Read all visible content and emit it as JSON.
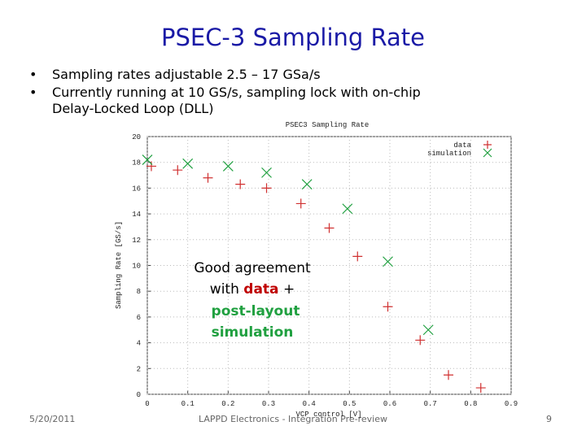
{
  "slide": {
    "title": "PSEC-3 Sampling Rate",
    "bullets": [
      "Sampling rates adjustable 2.5 – 17 GSa/s",
      "Currently running at 10 GS/s, sampling lock with on-chip",
      "Delay-Locked Loop (DLL)"
    ],
    "annotation": {
      "line1": "Good agreement",
      "line2": "with",
      "highlight": "data",
      "plus": "+",
      "line3": "post-layout",
      "line4": "simulation"
    },
    "footer": {
      "date": "5/20/2011",
      "center": "LAPPD Electronics - Integration Pre-review",
      "page": "9"
    }
  },
  "chart_data": {
    "type": "scatter",
    "title": "PSEC3 Sampling Rate",
    "x_label": "VCP control [V]",
    "y_label": "Sampling Rate [GS/s]",
    "xlim": [
      0,
      0.9
    ],
    "ylim": [
      0,
      20
    ],
    "xticks": [
      0,
      0.1,
      0.2,
      0.3,
      0.4,
      0.5,
      0.6,
      0.7,
      0.8,
      0.9
    ],
    "yticks": [
      0,
      2,
      4,
      6,
      8,
      10,
      12,
      14,
      16,
      18,
      20
    ],
    "grid": true,
    "legend": "top-right",
    "series": [
      {
        "name": "data",
        "color": "#d03030",
        "marker": "plus",
        "x": [
          0.01,
          0.075,
          0.15,
          0.23,
          0.295,
          0.38,
          0.45,
          0.52,
          0.595,
          0.675,
          0.745,
          0.825
        ],
        "values": [
          17.7,
          17.4,
          16.8,
          16.3,
          16.0,
          14.8,
          12.9,
          10.7,
          6.8,
          4.2,
          1.5,
          0.5
        ]
      },
      {
        "name": "simulation",
        "color": "#20a040",
        "marker": "cross",
        "x": [
          0,
          0.1,
          0.2,
          0.295,
          0.395,
          0.495,
          0.595,
          0.695
        ],
        "values": [
          18.2,
          17.9,
          17.7,
          17.2,
          16.3,
          14.4,
          10.3,
          5.0
        ]
      }
    ]
  }
}
